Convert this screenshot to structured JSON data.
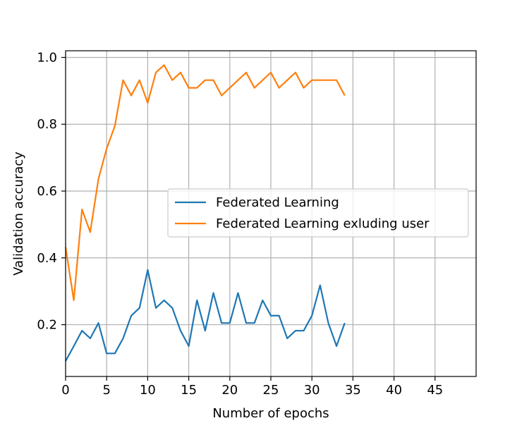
{
  "chart_data": {
    "type": "line",
    "title": "",
    "xlabel": "Number of epochs",
    "ylabel": "Validation accuracy",
    "xlim": [
      0,
      50
    ],
    "ylim": [
      0.045,
      1.02
    ],
    "xticks": [
      0,
      5,
      10,
      15,
      20,
      25,
      30,
      35,
      40,
      45
    ],
    "yticks": [
      0.2,
      0.4,
      0.6,
      0.8,
      1.0
    ],
    "grid": true,
    "legend_position": "center-right",
    "x": [
      0,
      1,
      2,
      3,
      4,
      5,
      6,
      7,
      8,
      9,
      10,
      11,
      12,
      13,
      14,
      15,
      16,
      17,
      18,
      19,
      20,
      21,
      22,
      23,
      24,
      25,
      26,
      27,
      28,
      29,
      30,
      31,
      32,
      33,
      34
    ],
    "series": [
      {
        "name": "Federated Learning",
        "color": "#1f77b4",
        "values": [
          0.091,
          0.136,
          0.182,
          0.159,
          0.205,
          0.114,
          0.114,
          0.159,
          0.227,
          0.25,
          0.364,
          0.25,
          0.273,
          0.25,
          0.182,
          0.136,
          0.273,
          0.182,
          0.295,
          0.205,
          0.205,
          0.295,
          0.205,
          0.205,
          0.273,
          0.227,
          0.227,
          0.159,
          0.182,
          0.182,
          0.227,
          0.318,
          0.205,
          0.136,
          0.205
        ]
      },
      {
        "name": "Federated Learning exluding user",
        "color": "#ff7f0e",
        "values": [
          0.432,
          0.273,
          0.545,
          0.477,
          0.636,
          0.727,
          0.795,
          0.932,
          0.886,
          0.932,
          0.864,
          0.955,
          0.977,
          0.932,
          0.955,
          0.909,
          0.909,
          0.932,
          0.932,
          0.886,
          0.909,
          0.932,
          0.955,
          0.909,
          0.932,
          0.955,
          0.909,
          0.932,
          0.955,
          0.909,
          0.932,
          0.932,
          0.932,
          0.932,
          0.886
        ]
      }
    ]
  }
}
